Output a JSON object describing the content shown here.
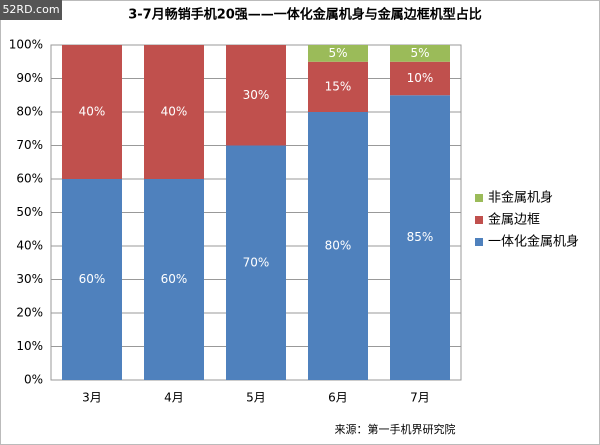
{
  "chart_data": {
    "type": "stacked_bar",
    "title": "3-7月畅销手机20强——一体化金属机身与金属边框机型占比",
    "watermark": "52RD.com",
    "source": "来源：第一手机界研究院",
    "categories": [
      "3月",
      "4月",
      "5月",
      "6月",
      "7月"
    ],
    "series": [
      {
        "name": "一体化金属机身",
        "color": "#4f81bd",
        "values": [
          60,
          60,
          70,
          80,
          85
        ],
        "value_labels": [
          "60%",
          "60%",
          "70%",
          "80%",
          "85%"
        ]
      },
      {
        "name": "金属边框",
        "color": "#c0504d",
        "values": [
          40,
          40,
          30,
          15,
          10
        ],
        "value_labels": [
          "40%",
          "40%",
          "30%",
          "15%",
          "10%"
        ]
      },
      {
        "name": "非金属机身",
        "color": "#9bbb59",
        "values": [
          null,
          null,
          null,
          5,
          5
        ],
        "value_labels": [
          null,
          null,
          null,
          "5%",
          "5%"
        ]
      }
    ],
    "ylim": [
      0,
      100
    ],
    "yticks": [
      {
        "value": 0,
        "label": "0%"
      },
      {
        "value": 10,
        "label": "10%"
      },
      {
        "value": 20,
        "label": "20%"
      },
      {
        "value": 30,
        "label": "30%"
      },
      {
        "value": 40,
        "label": "40%"
      },
      {
        "value": 50,
        "label": "50%"
      },
      {
        "value": 60,
        "label": "60%"
      },
      {
        "value": 70,
        "label": "70%"
      },
      {
        "value": 80,
        "label": "80%"
      },
      {
        "value": 90,
        "label": "90%"
      },
      {
        "value": 100,
        "label": "100%"
      }
    ],
    "grid": true,
    "legend": "right"
  }
}
